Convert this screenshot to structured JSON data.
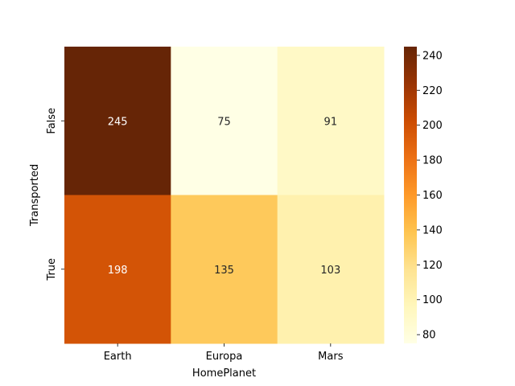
{
  "chart_data": {
    "type": "heatmap",
    "title": "",
    "xlabel": "HomePlanet",
    "ylabel": "Transported",
    "x_categories": [
      "Earth",
      "Europa",
      "Mars"
    ],
    "y_categories": [
      "False",
      "True"
    ],
    "values": [
      [
        245,
        75,
        91
      ],
      [
        198,
        135,
        103
      ]
    ],
    "colormap": "YlOrBr",
    "vmin": 75,
    "vmax": 245,
    "colorbar_ticks": [
      80,
      100,
      120,
      140,
      160,
      180,
      200,
      220,
      240
    ],
    "annotations_shown": true
  }
}
